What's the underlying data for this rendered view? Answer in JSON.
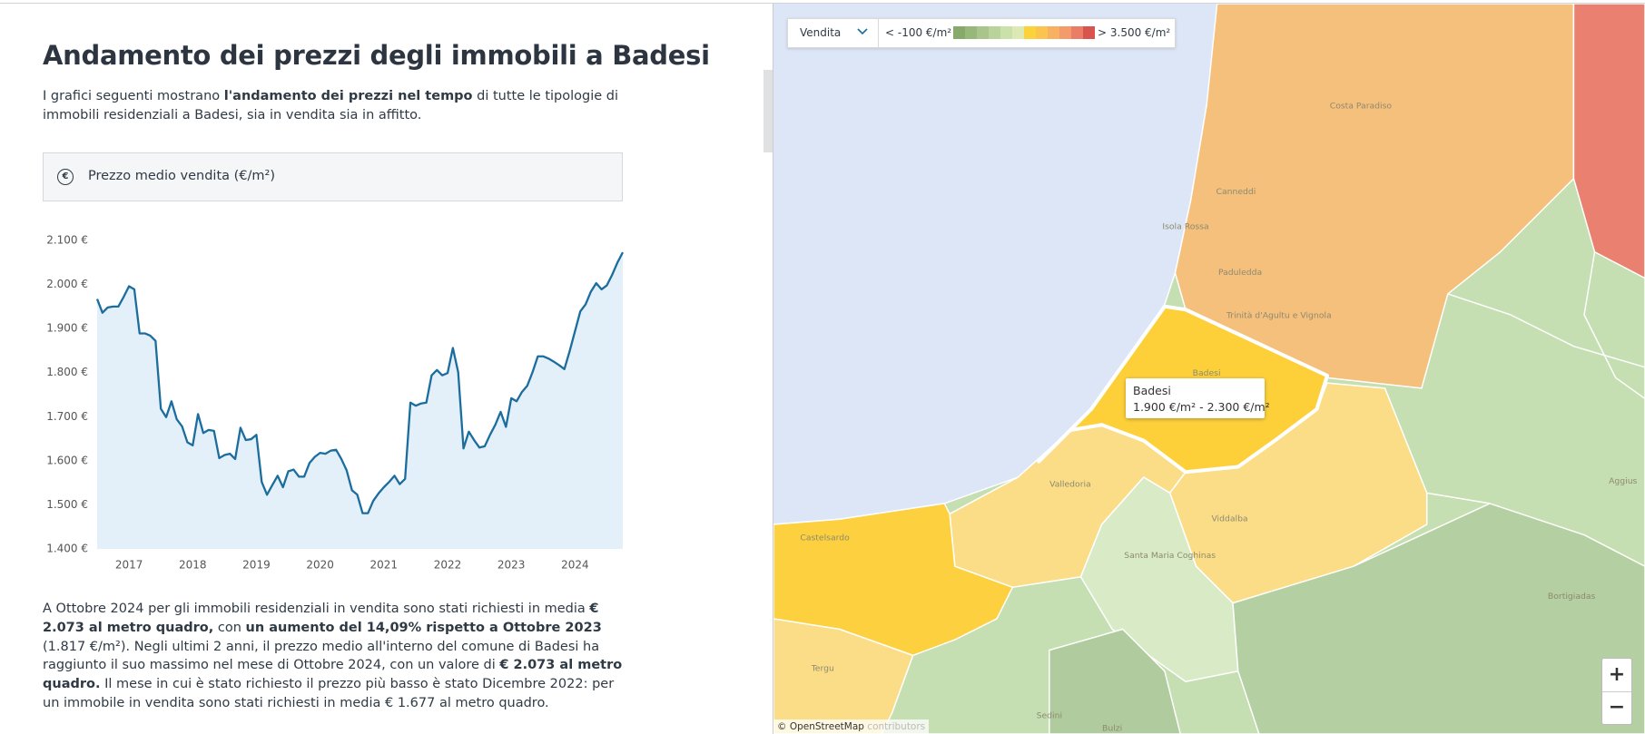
{
  "header": {
    "title": "Andamento dei prezzi degli immobili a Badesi"
  },
  "intro": [
    {
      "text": "I grafici seguenti mostrano ",
      "bold": false
    },
    {
      "text": "l'andamento dei prezzi nel tempo",
      "bold": true
    },
    {
      "text": " di tutte le tipologie di immobili residenziali a Badesi, sia in vendita sia in affitto.",
      "bold": false
    }
  ],
  "panel": {
    "icon": "€"
  },
  "chart_data": {
    "type": "line",
    "title": "Prezzo medio vendita (€/m²)",
    "categories": [
      null,
      null,
      null,
      null,
      null,
      null,
      "2017",
      null,
      null,
      null,
      null,
      null,
      null,
      null,
      null,
      null,
      null,
      null,
      "2018",
      null,
      null,
      null,
      null,
      null,
      null,
      null,
      null,
      null,
      null,
      null,
      "2019",
      null,
      null,
      null,
      null,
      null,
      null,
      null,
      null,
      null,
      null,
      null,
      "2020",
      null,
      null,
      null,
      null,
      null,
      null,
      null,
      null,
      null,
      null,
      null,
      "2021",
      null,
      null,
      null,
      null,
      null,
      null,
      null,
      null,
      null,
      null,
      null,
      "2022",
      null,
      null,
      null,
      null,
      null,
      null,
      null,
      null,
      null,
      null,
      null,
      "2023",
      null,
      null,
      null,
      null,
      null,
      null,
      null,
      null,
      null,
      null,
      null,
      "2024",
      null,
      null,
      null,
      null,
      null,
      null,
      null,
      null,
      null
    ],
    "values": [
      1967,
      1936,
      1948,
      1950,
      1950,
      1972,
      1996,
      1989,
      1889,
      1889,
      1884,
      1872,
      1718,
      1699,
      1735,
      1694,
      1678,
      1642,
      1635,
      1706,
      1663,
      1670,
      1668,
      1606,
      1613,
      1616,
      1604,
      1675,
      1647,
      1649,
      1659,
      1552,
      1523,
      1545,
      1566,
      1540,
      1576,
      1580,
      1564,
      1564,
      1595,
      1609,
      1618,
      1616,
      1623,
      1625,
      1604,
      1578,
      1533,
      1523,
      1481,
      1481,
      1509,
      1526,
      1540,
      1552,
      1566,
      1547,
      1559,
      1732,
      1725,
      1730,
      1732,
      1794,
      1806,
      1794,
      1799,
      1856,
      1801,
      1628,
      1666,
      1647,
      1630,
      1633,
      1659,
      1682,
      1711,
      1677,
      1742,
      1735,
      1756,
      1770,
      1801,
      1837,
      1837,
      1832,
      1825,
      1817,
      1808,
      1849,
      1894,
      1939,
      1955,
      1984,
      2003,
      1989,
      1998,
      2022,
      2050,
      2073
    ],
    "color": "#1b6d9e",
    "area_color": "#e3eff9",
    "ylim": [
      1400,
      2100
    ],
    "yticks": [
      {
        "value": 1400,
        "label": "1.400 €"
      },
      {
        "value": 1500,
        "label": "1.500 €"
      },
      {
        "value": 1600,
        "label": "1.600 €"
      },
      {
        "value": 1700,
        "label": "1.700 €"
      },
      {
        "value": 1800,
        "label": "1.800 €"
      },
      {
        "value": 1900,
        "label": "1.900 €"
      },
      {
        "value": 2000,
        "label": "2.000 €"
      },
      {
        "value": 2100,
        "label": "2.100 €"
      }
    ],
    "grid": false
  },
  "summary": [
    {
      "text": "A Ottobre 2024 per gli immobili residenziali in vendita sono stati richiesti in media ",
      "bold": false
    },
    {
      "text": "€ 2.073 al metro quadro,",
      "bold": true
    },
    {
      "text": " con ",
      "bold": false
    },
    {
      "text": "un aumento del 14,09% rispetto a Ottobre 2023",
      "bold": true
    },
    {
      "text": " (1.817 €/m²). Negli ultimi 2 anni, il prezzo medio all'interno del comune di Badesi ha raggiunto il suo massimo nel mese di Ottobre 2024, con un valore di ",
      "bold": false
    },
    {
      "text": "€ 2.073 al metro quadro.",
      "bold": true
    },
    {
      "text": " Il mese in cui è stato richiesto il prezzo più basso è stato Dicembre 2022: per un immobile in vendita sono stati richiesti in media € 1.677 al metro quadro.",
      "bold": false
    }
  ],
  "map": {
    "dropdown": "Vendita",
    "legend_min": "< -100 €/m²",
    "legend_max": "> 3.500 €/m²",
    "legend_colors": [
      "#87a96b",
      "#98b77b",
      "#a9c58b",
      "#bad39b",
      "#cbe1ab",
      "#dde9b4",
      "#fcd23a",
      "#fbc44f",
      "#f8b062",
      "#f39b6a",
      "#ea7d65",
      "#d9534f"
    ],
    "tooltip": {
      "name": "Badesi",
      "range": "1.900 €/m² - 2.300 €/m²"
    },
    "places": [
      "Costa Paradiso",
      "Canneddi",
      "Isola Rossa",
      "Paduledda",
      "Trinità d'Agultu e Vignola",
      "Badesi",
      "Valledoria",
      "Viddalba",
      "Santa Maria Coghinas",
      "Castelsardo",
      "Tergu",
      "Bortigiadas",
      "Aggius",
      "Sedini",
      "Bulzi"
    ],
    "zoom_in": "+",
    "zoom_out": "−",
    "attribution": "© OpenStreetMap",
    "attribution_more": "contributors"
  }
}
